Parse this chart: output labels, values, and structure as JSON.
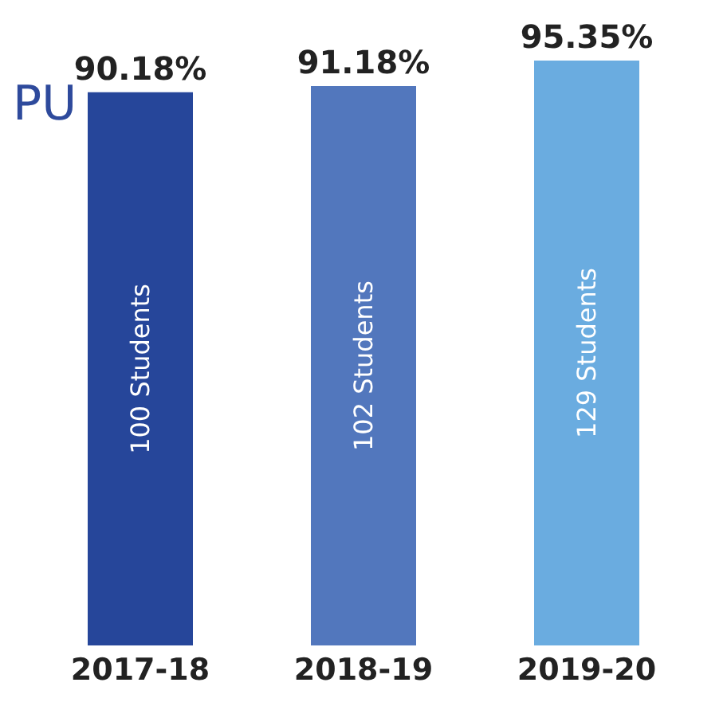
{
  "chart_data": {
    "type": "bar",
    "title": "PU",
    "categories": [
      "2017-18",
      "2018-19",
      "2019-20"
    ],
    "values": [
      90.18,
      91.18,
      95.35
    ],
    "colors": [
      "#26469a",
      "#5277bd",
      "#6aace0"
    ],
    "value_labels": [
      "90.18%",
      "91.18%",
      "95.35%"
    ],
    "annotations": [
      "100 Students",
      "102 Students",
      "129 Students"
    ],
    "grid": false,
    "legend": false,
    "tick_labels": "x"
  }
}
